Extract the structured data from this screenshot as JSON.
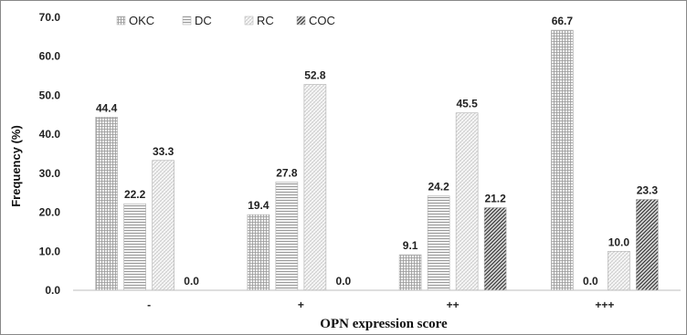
{
  "chart_data": {
    "type": "bar",
    "title": "",
    "xlabel": "OPN expression score",
    "ylabel": "Frequency (%)",
    "categories": [
      "-",
      "+",
      "++",
      "+++"
    ],
    "ylim": [
      0,
      70
    ],
    "yticks": [
      "0.0",
      "10.0",
      "20.0",
      "30.0",
      "40.0",
      "50.0",
      "60.0",
      "70.0"
    ],
    "grid": false,
    "legend_position": "top-left",
    "series": [
      {
        "name": "OKC",
        "values": [
          44.4,
          19.4,
          9.1,
          66.7
        ],
        "labels": [
          "44.4",
          "19.4",
          "9.1",
          "66.7"
        ],
        "pattern": "grid"
      },
      {
        "name": "DC",
        "values": [
          22.2,
          27.8,
          24.2,
          0.0
        ],
        "labels": [
          "22.2",
          "27.8",
          "24.2",
          "0.0"
        ],
        "pattern": "hlines"
      },
      {
        "name": "RC",
        "values": [
          33.3,
          52.8,
          45.5,
          10.0
        ],
        "labels": [
          "33.3",
          "52.8",
          "45.5",
          "10.0"
        ],
        "pattern": "fine"
      },
      {
        "name": "COC",
        "values": [
          0.0,
          0.0,
          21.2,
          23.3
        ],
        "labels": [
          "0.0",
          "0.0",
          "21.2",
          "23.3"
        ],
        "pattern": "diag"
      }
    ]
  }
}
